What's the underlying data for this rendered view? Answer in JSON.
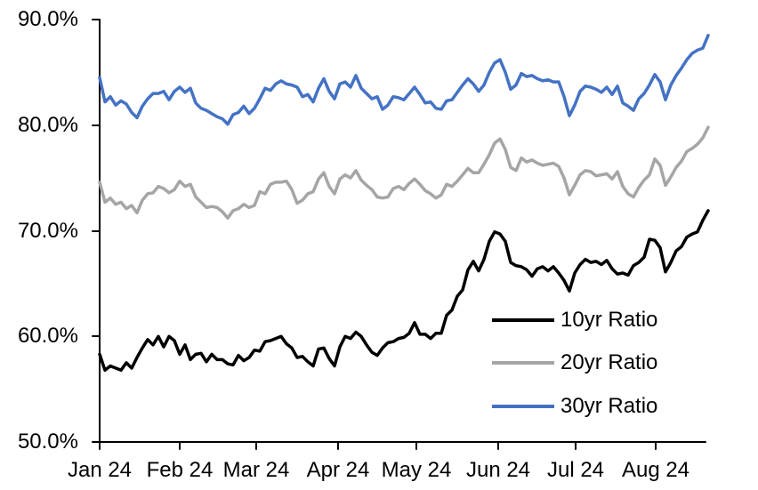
{
  "chart_data": {
    "type": "line",
    "title": "",
    "grid": false,
    "x_axis": {
      "tick_labels": [
        "Jan 24",
        "Feb 24",
        "Mar 24",
        "Apr 24",
        "May 24",
        "Jun 24",
        "Jul 24",
        "Aug 24"
      ],
      "start_date": "2024-01-01",
      "end_date": "2024-08-24",
      "n_points": 115
    },
    "y_axis": {
      "tick_labels": [
        "90.0%",
        "80.0%",
        "70.0%",
        "60.0%",
        "50.0%"
      ],
      "min": 50,
      "max": 90,
      "unit": "%"
    },
    "legend": {
      "position": "inside-bottom-right",
      "entries": [
        "10yr Ratio",
        "20yr Ratio",
        "30yr Ratio"
      ]
    },
    "series": [
      {
        "name": "10yr Ratio",
        "color": "#000000",
        "values": [
          58.3,
          56.8,
          57.2,
          57.0,
          56.8,
          57.5,
          57.0,
          58.0,
          58.9,
          59.7,
          59.2,
          60.0,
          59.0,
          60.0,
          59.6,
          58.3,
          59.2,
          57.8,
          58.3,
          58.4,
          57.6,
          58.3,
          57.8,
          57.8,
          57.4,
          57.3,
          58.2,
          57.7,
          58.0,
          58.7,
          58.6,
          59.5,
          59.6,
          59.8,
          60.0,
          59.3,
          58.9,
          58.0,
          58.1,
          57.6,
          57.2,
          58.8,
          58.9,
          57.9,
          57.2,
          59.0,
          60.0,
          59.8,
          60.4,
          60.0,
          59.2,
          58.5,
          58.2,
          58.9,
          59.4,
          59.5,
          59.8,
          59.9,
          60.3,
          61.3,
          60.2,
          60.2,
          59.8,
          60.3,
          60.3,
          62.0,
          62.5,
          63.8,
          64.4,
          66.3,
          67.1,
          66.2,
          67.3,
          69.0,
          69.9,
          69.7,
          69.0,
          67.0,
          66.7,
          66.6,
          66.3,
          65.7,
          66.4,
          66.6,
          66.2,
          66.6,
          66.0,
          65.3,
          64.3,
          66.0,
          66.8,
          67.3,
          67.0,
          67.1,
          66.8,
          67.2,
          66.4,
          65.9,
          66.0,
          65.8,
          66.7,
          67.0,
          67.5,
          69.2,
          69.1,
          68.4,
          66.1,
          67.0,
          68.1,
          68.5,
          69.4,
          69.7,
          69.9,
          71.0,
          71.9
        ]
      },
      {
        "name": "20yr Ratio",
        "color": "#A5A5A5",
        "values": [
          74.6,
          72.7,
          73.1,
          72.5,
          72.7,
          72.1,
          72.4,
          71.7,
          72.9,
          73.5,
          73.6,
          74.2,
          74.0,
          73.6,
          73.9,
          74.7,
          74.2,
          74.4,
          73.2,
          72.7,
          72.2,
          72.3,
          72.2,
          71.8,
          71.2,
          71.9,
          72.1,
          72.5,
          72.2,
          72.4,
          73.7,
          73.5,
          74.4,
          74.6,
          74.6,
          74.7,
          73.9,
          72.6,
          72.9,
          73.5,
          73.7,
          74.9,
          75.5,
          74.2,
          73.5,
          74.9,
          75.3,
          75.0,
          75.7,
          74.8,
          74.3,
          73.9,
          73.2,
          73.1,
          73.2,
          74.0,
          74.2,
          73.9,
          74.5,
          74.9,
          74.4,
          73.8,
          73.5,
          73.1,
          73.4,
          74.4,
          74.2,
          74.7,
          75.3,
          75.9,
          75.5,
          75.5,
          76.3,
          77.2,
          78.3,
          78.7,
          77.7,
          76.0,
          75.7,
          76.9,
          76.5,
          76.7,
          76.4,
          76.2,
          76.3,
          76.4,
          76.1,
          75.0,
          73.4,
          74.3,
          75.3,
          75.7,
          75.6,
          75.2,
          75.3,
          75.4,
          74.9,
          75.6,
          74.2,
          73.5,
          73.2,
          74.1,
          74.8,
          75.3,
          76.8,
          76.2,
          74.3,
          75.1,
          76.0,
          76.6,
          77.5,
          77.8,
          78.2,
          78.8,
          79.8
        ]
      },
      {
        "name": "30yr Ratio",
        "color": "#4472C4",
        "values": [
          84.5,
          82.2,
          82.7,
          81.9,
          82.3,
          82.0,
          81.2,
          80.7,
          81.8,
          82.5,
          83.0,
          83.0,
          83.2,
          82.4,
          83.2,
          83.6,
          83.1,
          83.5,
          82.1,
          81.6,
          81.4,
          81.1,
          80.8,
          80.6,
          80.1,
          81.0,
          81.2,
          81.8,
          81.1,
          81.6,
          82.5,
          83.5,
          83.3,
          83.9,
          84.2,
          83.9,
          83.8,
          83.6,
          82.7,
          82.9,
          82.2,
          83.5,
          84.4,
          83.2,
          82.5,
          83.9,
          84.1,
          83.6,
          84.7,
          83.5,
          83.0,
          82.5,
          82.7,
          81.5,
          81.9,
          82.7,
          82.6,
          82.4,
          83.0,
          83.6,
          82.9,
          82.1,
          82.2,
          81.6,
          81.5,
          82.3,
          82.4,
          83.1,
          83.8,
          84.4,
          83.9,
          83.2,
          83.8,
          85.0,
          85.9,
          86.2,
          85.0,
          83.4,
          83.8,
          84.9,
          84.6,
          84.7,
          84.4,
          84.2,
          84.3,
          84.1,
          84.1,
          82.7,
          80.9,
          81.9,
          83.2,
          83.7,
          83.6,
          83.4,
          83.1,
          83.6,
          82.9,
          83.7,
          82.1,
          81.8,
          81.4,
          82.5,
          83.0,
          83.8,
          84.8,
          84.1,
          82.4,
          83.8,
          84.7,
          85.4,
          86.2,
          86.8,
          87.1,
          87.3,
          88.5
        ]
      }
    ]
  }
}
